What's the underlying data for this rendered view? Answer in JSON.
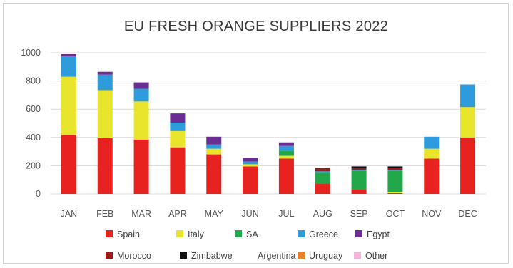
{
  "chart_data": {
    "type": "bar",
    "stacked": true,
    "title": "EU FRESH ORANGE SUPPLIERS 2022",
    "xlabel": "",
    "ylabel": "",
    "ylim": [
      0,
      1000
    ],
    "yticks": [
      0,
      200,
      400,
      600,
      800,
      1000
    ],
    "grid": true,
    "legend_position": "bottom",
    "categories": [
      "JAN",
      "FEB",
      "MAR",
      "APR",
      "MAY",
      "JUN",
      "JUL",
      "AUG",
      "SEP",
      "OCT",
      "NOV",
      "DEC"
    ],
    "series": [
      {
        "name": "Spain",
        "color": "#e8231f",
        "values": [
          420,
          395,
          385,
          330,
          280,
          195,
          250,
          75,
          30,
          5,
          250,
          400
        ]
      },
      {
        "name": "Italy",
        "color": "#e9e42c",
        "values": [
          410,
          340,
          270,
          115,
          40,
          15,
          20,
          0,
          0,
          10,
          70,
          215
        ]
      },
      {
        "name": "SA",
        "color": "#22a84a",
        "values": [
          0,
          0,
          0,
          0,
          0,
          0,
          35,
          75,
          135,
          150,
          0,
          0
        ]
      },
      {
        "name": "Greece",
        "color": "#2e9bdc",
        "values": [
          145,
          110,
          90,
          60,
          30,
          20,
          35,
          10,
          5,
          5,
          85,
          160
        ]
      },
      {
        "name": "Egypt",
        "color": "#6a2d91",
        "values": [
          15,
          20,
          45,
          65,
          55,
          25,
          25,
          0,
          0,
          0,
          0,
          0
        ]
      },
      {
        "name": "Morocco",
        "color": "#9e1b1b",
        "values": [
          0,
          0,
          0,
          0,
          0,
          0,
          0,
          20,
          10,
          15,
          0,
          0
        ]
      },
      {
        "name": "Zimbabwe",
        "color": "#111111",
        "values": [
          0,
          0,
          0,
          0,
          0,
          0,
          0,
          5,
          15,
          10,
          0,
          0
        ]
      },
      {
        "name": "Argentina",
        "color": "#ffffff",
        "values": [
          0,
          0,
          0,
          0,
          0,
          0,
          0,
          0,
          0,
          0,
          0,
          0
        ]
      },
      {
        "name": "Uruguay",
        "color": "#f07f22",
        "values": [
          0,
          0,
          0,
          0,
          0,
          0,
          0,
          0,
          0,
          0,
          0,
          0
        ]
      },
      {
        "name": "Other",
        "color": "#f2b5d8",
        "values": [
          0,
          0,
          0,
          0,
          0,
          0,
          0,
          0,
          0,
          0,
          0,
          0
        ]
      }
    ]
  }
}
